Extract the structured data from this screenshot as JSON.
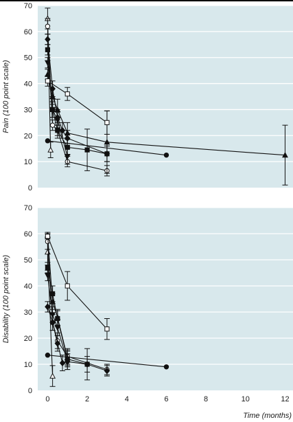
{
  "chart_data": [
    {
      "type": "line",
      "ylabel": "Pain (100 point scale)",
      "xlabel": "",
      "xlim": [
        -0.5,
        12.4
      ],
      "ylim": [
        0,
        70
      ],
      "yticks": [
        0,
        10,
        20,
        30,
        40,
        50,
        60,
        70
      ],
      "xticks": [],
      "background_color": "#d8e8ec",
      "grid": true,
      "series": [
        {
          "marker": "circle-filled",
          "points": [
            [
              0,
              18
            ],
            [
              6,
              12.5
            ]
          ],
          "errors": [
            0,
            0
          ]
        },
        {
          "marker": "triangle-open",
          "points": [
            [
              0,
              65
            ],
            [
              0.15,
              14.5
            ]
          ],
          "errors": [
            4,
            3
          ]
        },
        {
          "marker": "circle-open",
          "points": [
            [
              0,
              62
            ],
            [
              0.25,
              24
            ],
            [
              0.5,
              22
            ],
            [
              1,
              10
            ],
            [
              3,
              6.5
            ]
          ],
          "errors": [
            3,
            2,
            2,
            2,
            2
          ]
        },
        {
          "marker": "diamond-filled",
          "points": [
            [
              0,
              57
            ],
            [
              0.25,
              38
            ],
            [
              0.5,
              27
            ],
            [
              0.75,
              22
            ],
            [
              1,
              19
            ],
            [
              3,
              13
            ]
          ],
          "errors": [
            2,
            3,
            3,
            3,
            3,
            3
          ]
        },
        {
          "marker": "square-filled",
          "points": [
            [
              0,
              53
            ],
            [
              0.25,
              30
            ],
            [
              0.5,
              22
            ],
            [
              1,
              15.5
            ],
            [
              2,
              14.5
            ],
            [
              3,
              13
            ]
          ],
          "errors": [
            2,
            3,
            3,
            3,
            8,
            3
          ]
        },
        {
          "marker": "triangle-down-filled",
          "points": [
            [
              0,
              48
            ],
            [
              0.25,
              30
            ],
            [
              0.5,
              26
            ],
            [
              1,
              12
            ]
          ],
          "errors": [
            2,
            3,
            3,
            3
          ]
        },
        {
          "marker": "triangle-filled",
          "points": [
            [
              0,
              43.5
            ],
            [
              0.25,
              35
            ],
            [
              0.5,
              30
            ],
            [
              1,
              21
            ],
            [
              3,
              17.5
            ],
            [
              12,
              12.5
            ]
          ],
          "errors": [
            2,
            3,
            4,
            4,
            12,
            11.5
          ]
        },
        {
          "marker": "square-open",
          "points": [
            [
              0,
              41
            ],
            [
              1,
              36
            ],
            [
              3,
              25
            ]
          ],
          "errors": [
            2,
            2.5,
            4.5
          ]
        }
      ]
    },
    {
      "type": "line",
      "ylabel": "Disability (100 point scale)",
      "xlabel": "Time (months)",
      "xlim": [
        -0.5,
        12.4
      ],
      "ylim": [
        0,
        70
      ],
      "yticks": [
        0,
        10,
        20,
        30,
        40,
        50,
        60,
        70
      ],
      "xticks": [
        0,
        2,
        4,
        6,
        8,
        10,
        12
      ],
      "background_color": "#d8e8ec",
      "grid": true,
      "series": [
        {
          "marker": "circle-filled",
          "points": [
            [
              0,
              13.5
            ],
            [
              6,
              9
            ]
          ],
          "errors": [
            0,
            0
          ]
        },
        {
          "marker": "triangle-open",
          "points": [
            [
              0,
              53
            ],
            [
              0.25,
              5.5
            ]
          ],
          "errors": [
            5,
            4
          ]
        },
        {
          "marker": "circle-open",
          "points": [
            [
              0,
              57
            ],
            [
              0.25,
              26
            ],
            [
              0.5,
              19
            ],
            [
              1,
              13
            ],
            [
              3,
              8
            ]
          ],
          "errors": [
            3,
            3,
            3,
            3,
            2
          ]
        },
        {
          "marker": "diamond-filled",
          "points": [
            [
              0,
              32
            ],
            [
              0.25,
              26
            ],
            [
              0.5,
              18
            ],
            [
              0.75,
              10.5
            ],
            [
              1,
              11
            ],
            [
              2,
              10
            ],
            [
              3,
              7.5
            ]
          ],
          "errors": [
            2,
            3,
            3,
            3,
            3,
            3,
            2
          ]
        },
        {
          "marker": "square-filled",
          "points": [
            [
              0,
              47
            ],
            [
              0.25,
              37
            ],
            [
              0.5,
              27.5
            ],
            [
              1,
              12
            ],
            [
              2,
              10
            ]
          ],
          "errors": [
            2,
            3,
            3,
            3,
            6
          ]
        },
        {
          "marker": "triangle-down-filled",
          "points": [
            [
              0,
              44
            ],
            [
              0.25,
              29
            ],
            [
              0.5,
              24
            ],
            [
              1,
              11
            ]
          ],
          "errors": [
            2,
            3,
            3,
            3
          ]
        },
        {
          "marker": "triangle-filled",
          "points": [
            [
              0,
              59.5
            ],
            [
              0.25,
              34
            ],
            [
              0.5,
              28
            ],
            [
              1,
              12.5
            ]
          ],
          "errors": [
            1,
            3,
            3,
            3
          ]
        },
        {
          "marker": "square-open",
          "points": [
            [
              0,
              59
            ],
            [
              1,
              40
            ],
            [
              3,
              23.5
            ]
          ],
          "errors": [
            1,
            5.5,
            4
          ]
        }
      ]
    }
  ]
}
